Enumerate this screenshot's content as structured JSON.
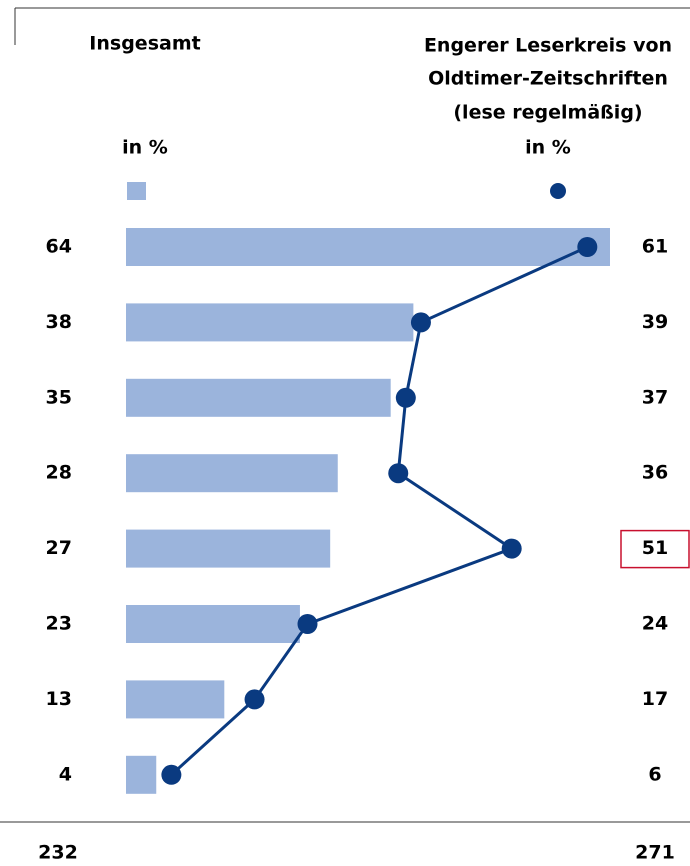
{
  "chart_data": {
    "type": "bar_line",
    "left_header": "Insgesamt",
    "left_unit": "in %",
    "right_header": [
      "Engerer Leserkreis von",
      "Oldtimer-Zeitschriften",
      "(lese regelmäßig)"
    ],
    "right_unit": "in %",
    "series": [
      {
        "type": "bar",
        "color": "#9bb4dc",
        "values": [
          64,
          38,
          35,
          28,
          27,
          23,
          13,
          4
        ]
      },
      {
        "type": "line",
        "color": "#0a3a80",
        "values": [
          61,
          39,
          37,
          36,
          51,
          24,
          17,
          6
        ]
      }
    ],
    "xlim": [
      0,
      64
    ],
    "totals": [
      232,
      271
    ],
    "highlight_index": 4,
    "highlight_color": "#c8102e"
  }
}
